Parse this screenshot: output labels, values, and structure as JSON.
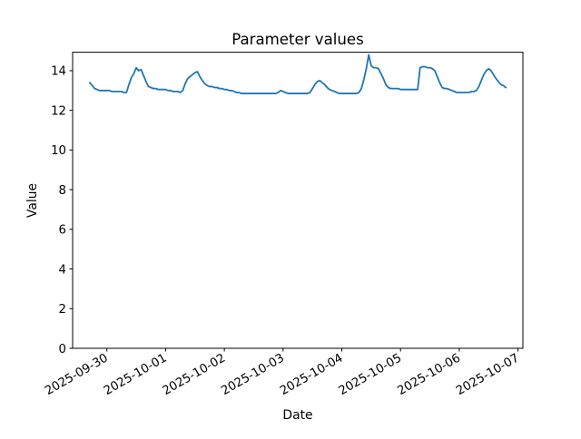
{
  "figure": {
    "background": "#ffffff",
    "axes_edge_color": "#000000",
    "text_color": "#000000"
  },
  "chart_data": {
    "type": "line",
    "title": "Parameter values",
    "xlabel": "Date",
    "ylabel": "Value",
    "grid": false,
    "legend": null,
    "x_axis": {
      "tick_labels": [
        "2025-09-30",
        "2025-10-01",
        "2025-10-02",
        "2025-10-03",
        "2025-10-04",
        "2025-10-05",
        "2025-10-06",
        "2025-10-07"
      ],
      "tick_hours": [
        0,
        24,
        48,
        72,
        96,
        120,
        144,
        168
      ],
      "limits_hours": [
        -14,
        170
      ],
      "tick_label_rotation_deg": 30
    },
    "y_axis": {
      "tick_labels": [
        "0",
        "2",
        "4",
        "6",
        "8",
        "10",
        "12",
        "14"
      ],
      "ticks": [
        0,
        2,
        4,
        6,
        8,
        10,
        12,
        14
      ],
      "limits": [
        0,
        14.93
      ]
    },
    "series": [
      {
        "name": "parameter-values",
        "color": "#1f77b4",
        "start_datetime": "2025-09-29 17:00",
        "end_datetime": "2025-10-06 19:00",
        "step_hours": 1,
        "start_offset_hours_from_first_tick": -7,
        "values": [
          13.4,
          13.25,
          13.1,
          13.05,
          13.0,
          13.0,
          13.0,
          13.0,
          13.0,
          12.95,
          12.95,
          12.95,
          12.95,
          12.95,
          12.9,
          12.9,
          13.3,
          13.65,
          13.85,
          14.15,
          14.0,
          14.05,
          13.75,
          13.45,
          13.2,
          13.15,
          13.1,
          13.1,
          13.05,
          13.05,
          13.05,
          13.05,
          13.0,
          13.0,
          12.95,
          12.95,
          12.95,
          12.9,
          13.0,
          13.35,
          13.6,
          13.7,
          13.8,
          13.9,
          13.95,
          13.7,
          13.5,
          13.35,
          13.25,
          13.2,
          13.2,
          13.15,
          13.15,
          13.1,
          13.1,
          13.05,
          13.05,
          13.0,
          13.0,
          12.95,
          12.9,
          12.9,
          12.85,
          12.85,
          12.85,
          12.85,
          12.85,
          12.85,
          12.85,
          12.85,
          12.85,
          12.85,
          12.85,
          12.85,
          12.85,
          12.85,
          12.85,
          12.9,
          13.0,
          12.95,
          12.9,
          12.85,
          12.85,
          12.85,
          12.85,
          12.85,
          12.85,
          12.85,
          12.85,
          12.85,
          12.9,
          13.1,
          13.3,
          13.45,
          13.5,
          13.4,
          13.3,
          13.15,
          13.05,
          13.0,
          12.95,
          12.9,
          12.85,
          12.85,
          12.85,
          12.85,
          12.85,
          12.85,
          12.85,
          12.85,
          12.9,
          13.1,
          13.55,
          14.1,
          14.8,
          14.25,
          14.15,
          14.15,
          14.1,
          13.85,
          13.6,
          13.3,
          13.15,
          13.1,
          13.1,
          13.1,
          13.1,
          13.05,
          13.05,
          13.05,
          13.05,
          13.05,
          13.05,
          13.05,
          13.05,
          14.15,
          14.2,
          14.2,
          14.15,
          14.15,
          14.1,
          14.0,
          13.7,
          13.4,
          13.15,
          13.1,
          13.1,
          13.05,
          13.0,
          12.95,
          12.9,
          12.9,
          12.9,
          12.9,
          12.9,
          12.9,
          12.95,
          12.95,
          13.0,
          13.2,
          13.5,
          13.8,
          14.0,
          14.1,
          14.0,
          13.8,
          13.6,
          13.45,
          13.3,
          13.25,
          13.15
        ]
      }
    ]
  }
}
